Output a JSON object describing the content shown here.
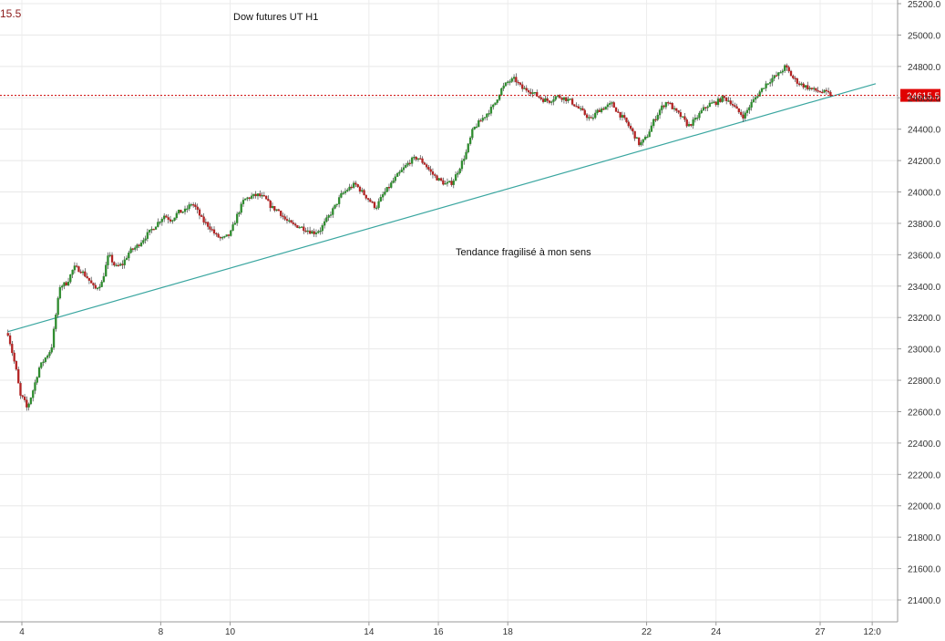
{
  "chart_data": {
    "type": "candlestick",
    "title": "Dow futures UT H1",
    "annotation": "Tendance fragilisé à mon sens",
    "corner_price_partial": "15.5",
    "current_price": 24615.5,
    "current_price_label": "24615.5",
    "ylim": [
      21250,
      25250
    ],
    "y_ticks": [
      21400,
      21600,
      21800,
      22000,
      22200,
      22400,
      22600,
      22800,
      23000,
      23200,
      23400,
      23600,
      23800,
      24000,
      24200,
      24400,
      24600,
      24800,
      25000,
      25200
    ],
    "y_tick_labels": [
      "21400.0",
      "21600.0",
      "21800.0",
      "22000.0",
      "22200.0",
      "22400.0",
      "22600.0",
      "22800.0",
      "23000.0",
      "23200.0",
      "23400.0",
      "23600.0",
      "23800.0",
      "24000.0",
      "24200.0",
      "24400.0",
      "24600.0",
      "24800.0",
      "25000.0",
      "25200.0"
    ],
    "x_ticks": [
      {
        "day": 4,
        "label": "4"
      },
      {
        "day": 8,
        "label": "8"
      },
      {
        "day": 10,
        "label": "10"
      },
      {
        "day": 14,
        "label": "14"
      },
      {
        "day": 16,
        "label": "16"
      },
      {
        "day": 18,
        "label": "18"
      },
      {
        "day": 22,
        "label": "22"
      },
      {
        "day": 24,
        "label": "24"
      },
      {
        "day": 27,
        "label": "27"
      },
      {
        "day": 28.5,
        "label": "12:0"
      }
    ],
    "x_range_days": [
      3.6,
      28.6
    ],
    "grid": true,
    "colors": {
      "up": "#2e8b2e",
      "down": "#b22222",
      "trendline": "#3aa6a0",
      "price_line": "#cc0000",
      "price_label_bg": "#e00000"
    },
    "trendline": {
      "from": {
        "day": 3.6,
        "price": 23110
      },
      "to": {
        "day": 28.6,
        "price": 24690
      }
    },
    "price_path": [
      [
        3.6,
        23100
      ],
      [
        3.75,
        22950
      ],
      [
        3.85,
        22850
      ],
      [
        3.95,
        22700
      ],
      [
        4.05,
        22680
      ],
      [
        4.15,
        22620
      ],
      [
        4.3,
        22720
      ],
      [
        4.5,
        22880
      ],
      [
        4.7,
        22950
      ],
      [
        4.85,
        23000
      ],
      [
        5.0,
        23250
      ],
      [
        5.1,
        23400
      ],
      [
        5.3,
        23420
      ],
      [
        5.5,
        23520
      ],
      [
        5.7,
        23500
      ],
      [
        5.9,
        23450
      ],
      [
        6.1,
        23380
      ],
      [
        6.3,
        23420
      ],
      [
        6.5,
        23600
      ],
      [
        6.7,
        23520
      ],
      [
        6.9,
        23540
      ],
      [
        7.1,
        23620
      ],
      [
        7.3,
        23650
      ],
      [
        7.5,
        23700
      ],
      [
        7.7,
        23750
      ],
      [
        7.9,
        23800
      ],
      [
        8.1,
        23850
      ],
      [
        8.3,
        23820
      ],
      [
        8.5,
        23870
      ],
      [
        8.7,
        23880
      ],
      [
        8.9,
        23930
      ],
      [
        9.0,
        23900
      ],
      [
        9.2,
        23820
      ],
      [
        9.4,
        23780
      ],
      [
        9.6,
        23720
      ],
      [
        9.8,
        23700
      ],
      [
        10.0,
        23730
      ],
      [
        10.2,
        23850
      ],
      [
        10.4,
        23950
      ],
      [
        10.6,
        23970
      ],
      [
        10.8,
        23980
      ],
      [
        11.0,
        23960
      ],
      [
        11.2,
        23900
      ],
      [
        11.4,
        23880
      ],
      [
        11.6,
        23820
      ],
      [
        11.8,
        23790
      ],
      [
        12.0,
        23780
      ],
      [
        12.2,
        23760
      ],
      [
        12.4,
        23740
      ],
      [
        12.6,
        23760
      ],
      [
        12.8,
        23830
      ],
      [
        13.0,
        23900
      ],
      [
        13.2,
        23980
      ],
      [
        13.4,
        24020
      ],
      [
        13.6,
        24050
      ],
      [
        13.8,
        24000
      ],
      [
        14.0,
        23950
      ],
      [
        14.2,
        23900
      ],
      [
        14.4,
        23980
      ],
      [
        14.6,
        24040
      ],
      [
        14.8,
        24100
      ],
      [
        15.0,
        24150
      ],
      [
        15.2,
        24200
      ],
      [
        15.4,
        24220
      ],
      [
        15.6,
        24180
      ],
      [
        15.8,
        24120
      ],
      [
        16.0,
        24080
      ],
      [
        16.2,
        24050
      ],
      [
        16.4,
        24060
      ],
      [
        16.6,
        24150
      ],
      [
        16.8,
        24250
      ],
      [
        17.0,
        24400
      ],
      [
        17.2,
        24450
      ],
      [
        17.4,
        24500
      ],
      [
        17.6,
        24550
      ],
      [
        17.8,
        24650
      ],
      [
        18.0,
        24700
      ],
      [
        18.2,
        24720
      ],
      [
        18.4,
        24660
      ],
      [
        18.6,
        24650
      ],
      [
        18.8,
        24620
      ],
      [
        19.0,
        24590
      ],
      [
        19.2,
        24580
      ],
      [
        19.4,
        24610
      ],
      [
        19.6,
        24600
      ],
      [
        19.8,
        24580
      ],
      [
        20.0,
        24540
      ],
      [
        20.2,
        24500
      ],
      [
        20.4,
        24460
      ],
      [
        20.6,
        24520
      ],
      [
        20.8,
        24540
      ],
      [
        21.0,
        24560
      ],
      [
        21.2,
        24500
      ],
      [
        21.4,
        24450
      ],
      [
        21.6,
        24380
      ],
      [
        21.8,
        24300
      ],
      [
        22.0,
        24350
      ],
      [
        22.2,
        24450
      ],
      [
        22.4,
        24530
      ],
      [
        22.6,
        24580
      ],
      [
        22.8,
        24520
      ],
      [
        23.0,
        24480
      ],
      [
        23.2,
        24420
      ],
      [
        23.4,
        24460
      ],
      [
        23.6,
        24520
      ],
      [
        23.8,
        24560
      ],
      [
        24.0,
        24570
      ],
      [
        24.2,
        24600
      ],
      [
        24.4,
        24580
      ],
      [
        24.6,
        24520
      ],
      [
        24.8,
        24480
      ],
      [
        25.0,
        24560
      ],
      [
        25.2,
        24620
      ],
      [
        25.4,
        24680
      ],
      [
        25.6,
        24720
      ],
      [
        25.8,
        24750
      ],
      [
        26.0,
        24800
      ],
      [
        26.2,
        24730
      ],
      [
        26.4,
        24690
      ],
      [
        26.6,
        24670
      ],
      [
        26.8,
        24650
      ],
      [
        27.0,
        24640
      ],
      [
        27.2,
        24630
      ],
      [
        27.35,
        24615
      ]
    ]
  }
}
